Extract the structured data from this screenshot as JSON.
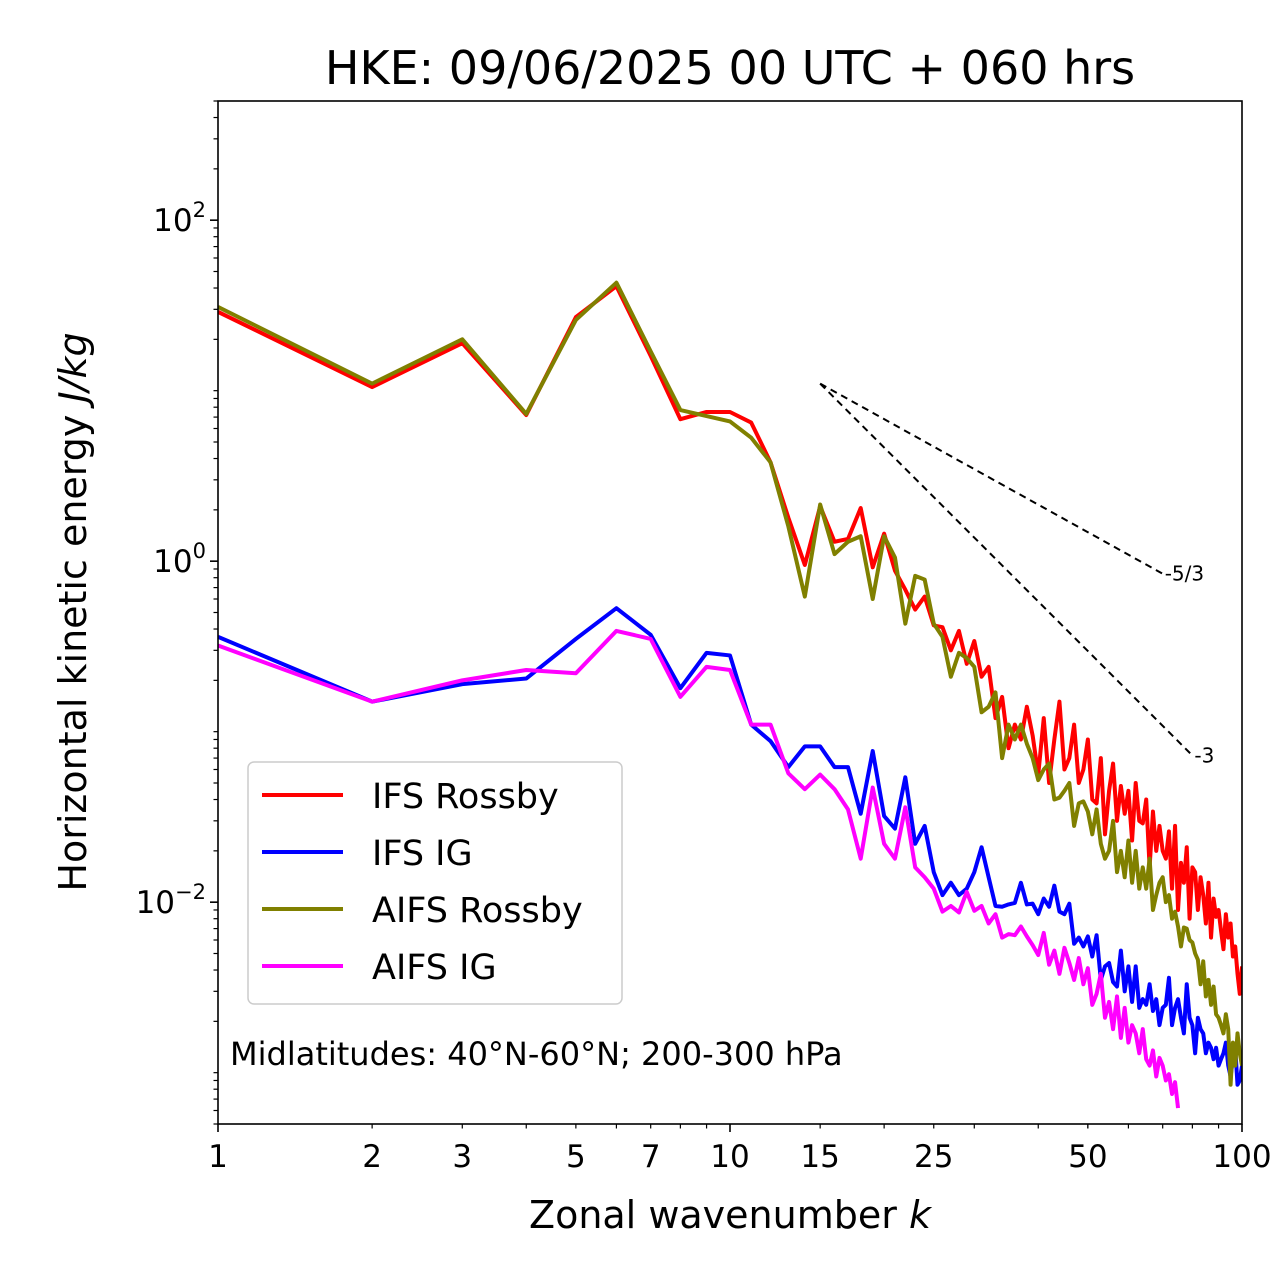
{
  "chart_data": {
    "type": "line",
    "title": "HKE: 09/06/2025 00 UTC + 060 hrs",
    "xlabel": "Zonal wavenumber",
    "xlabel_italic": "k",
    "ylabel": "Horizontal kinetic energy",
    "ylabel_italic": "J/kg",
    "xscale": "log",
    "yscale": "log",
    "xlim": [
      1,
      100
    ],
    "ylim": [
      0.0005,
      500
    ],
    "x_tick_values": [
      1,
      2,
      3,
      5,
      7,
      10,
      15,
      25,
      50,
      100
    ],
    "x_tick_labels": [
      "1",
      "2",
      "3",
      "5",
      "7",
      "10",
      "15",
      "25",
      "50",
      "100"
    ],
    "y_tick_values": [
      0.01,
      1,
      100
    ],
    "y_tick_labels": [
      {
        "base": "10",
        "exp": "−2"
      },
      {
        "base": "10",
        "exp": "0"
      },
      {
        "base": "10",
        "exp": "2"
      }
    ],
    "grid": false,
    "legend_placement": "lower-left",
    "annotation": "Midlatitudes: 40°N-60°N; 200-300 hPa",
    "reference_slopes": [
      {
        "label": "-5/3",
        "slope": -1.6667,
        "x_start": 15,
        "y_start": 11,
        "x_end": 70
      },
      {
        "label": "-3",
        "slope": -3,
        "x_start": 15,
        "y_start": 11,
        "x_end": 80
      }
    ],
    "series": [
      {
        "name": "IFS Rossby",
        "color": "#ff0000",
        "x": [
          1,
          2,
          3,
          4,
          5,
          6,
          7,
          8,
          9,
          10,
          11,
          12,
          13,
          14,
          15,
          16,
          17,
          18,
          19,
          20,
          21,
          22,
          23,
          24,
          25,
          26,
          27,
          28,
          29,
          30,
          31,
          32,
          33,
          34,
          35,
          36,
          37,
          38,
          39,
          40,
          41,
          42,
          43,
          44,
          45,
          46,
          47,
          48,
          49,
          50,
          51,
          52,
          53,
          54,
          55,
          56,
          57,
          58,
          59,
          60,
          61,
          62,
          63,
          64,
          65,
          66,
          67,
          68,
          69,
          70,
          71,
          72,
          73,
          74,
          75,
          76,
          77,
          78,
          79,
          80,
          81,
          82,
          83,
          84,
          85,
          86,
          87,
          88,
          89,
          90,
          91,
          92,
          93,
          94,
          95,
          96,
          97,
          98,
          99,
          100
        ],
        "y": [
          29,
          10.5,
          19,
          7.2,
          27,
          41,
          16,
          6.8,
          7.5,
          7.5,
          6.5,
          3.8,
          1.8,
          0.95,
          2.1,
          1.3,
          1.35,
          2.05,
          0.92,
          1.45,
          0.88,
          0.68,
          0.52,
          0.62,
          0.42,
          0.41,
          0.3,
          0.39,
          0.25,
          0.34,
          0.21,
          0.24,
          0.12,
          0.16,
          0.08,
          0.11,
          0.09,
          0.14,
          0.095,
          0.056,
          0.12,
          0.05,
          0.09,
          0.15,
          0.06,
          0.07,
          0.11,
          0.05,
          0.06,
          0.09,
          0.04,
          0.038,
          0.07,
          0.025,
          0.045,
          0.065,
          0.03,
          0.048,
          0.033,
          0.045,
          0.023,
          0.05,
          0.03,
          0.029,
          0.04,
          0.016,
          0.034,
          0.02,
          0.028,
          0.02,
          0.018,
          0.026,
          0.012,
          0.028,
          0.009,
          0.017,
          0.013,
          0.021,
          0.008,
          0.016,
          0.015,
          0.009,
          0.014,
          0.011,
          0.0075,
          0.013,
          0.0062,
          0.0105,
          0.0082,
          0.009,
          0.0068,
          0.0053,
          0.0085,
          0.0062,
          0.0075,
          0.0048,
          0.0055,
          0.0038,
          0.0029,
          0.0042
        ]
      },
      {
        "name": "IFS IG",
        "color": "#0000ff",
        "x": [
          1,
          2,
          3,
          4,
          5,
          6,
          7,
          8,
          9,
          10,
          11,
          12,
          13,
          14,
          15,
          16,
          17,
          18,
          19,
          20,
          21,
          22,
          23,
          24,
          25,
          26,
          27,
          28,
          29,
          30,
          31,
          32,
          33,
          34,
          35,
          36,
          37,
          38,
          39,
          40,
          41,
          42,
          43,
          44,
          45,
          46,
          47,
          48,
          49,
          50,
          51,
          52,
          53,
          54,
          55,
          56,
          57,
          58,
          59,
          60,
          61,
          62,
          63,
          64,
          65,
          66,
          67,
          68,
          69,
          70,
          71,
          72,
          73,
          74,
          75,
          76,
          77,
          78,
          79,
          80,
          81,
          82,
          83,
          84,
          85,
          86,
          87,
          88,
          89,
          90,
          91,
          92,
          93,
          94,
          95,
          96,
          97,
          98,
          99,
          100
        ],
        "y": [
          0.36,
          0.15,
          0.19,
          0.205,
          0.35,
          0.53,
          0.37,
          0.18,
          0.29,
          0.28,
          0.11,
          0.088,
          0.062,
          0.082,
          0.082,
          0.062,
          0.062,
          0.033,
          0.077,
          0.032,
          0.027,
          0.054,
          0.022,
          0.028,
          0.015,
          0.011,
          0.013,
          0.011,
          0.012,
          0.015,
          0.021,
          0.014,
          0.0095,
          0.0094,
          0.0097,
          0.0099,
          0.013,
          0.0097,
          0.0098,
          0.0085,
          0.0105,
          0.0094,
          0.0125,
          0.0088,
          0.0085,
          0.0098,
          0.0057,
          0.0062,
          0.0055,
          0.0063,
          0.0048,
          0.0064,
          0.0035,
          0.0042,
          0.0044,
          0.0034,
          0.0032,
          0.0052,
          0.003,
          0.0042,
          0.0026,
          0.0042,
          0.0024,
          0.0027,
          0.0025,
          0.0033,
          0.0023,
          0.0027,
          0.0019,
          0.0024,
          0.0025,
          0.0036,
          0.0019,
          0.0024,
          0.0027,
          0.0021,
          0.0017,
          0.0033,
          0.0021,
          0.0019,
          0.0013,
          0.0021,
          0.0018,
          0.0017,
          0.0013,
          0.0015,
          0.0014,
          0.0012,
          0.0014,
          0.0011,
          0.0012,
          0.0013,
          0.0015,
          0.0011,
          0.00095,
          0.0012,
          0.0014,
          0.00085,
          0.0009,
          0.0011
        ]
      },
      {
        "name": "AIFS Rossby",
        "color": "#808000",
        "x": [
          1,
          2,
          3,
          4,
          5,
          6,
          7,
          8,
          9,
          10,
          11,
          12,
          13,
          14,
          15,
          16,
          17,
          18,
          19,
          20,
          21,
          22,
          23,
          24,
          25,
          26,
          27,
          28,
          29,
          30,
          31,
          32,
          33,
          34,
          35,
          36,
          37,
          38,
          39,
          40,
          41,
          42,
          43,
          44,
          45,
          46,
          47,
          48,
          49,
          50,
          51,
          52,
          53,
          54,
          55,
          56,
          57,
          58,
          59,
          60,
          61,
          62,
          63,
          64,
          65,
          66,
          67,
          68,
          69,
          70,
          71,
          72,
          73,
          74,
          75,
          76,
          77,
          78,
          79,
          80,
          81,
          82,
          83,
          84,
          85,
          86,
          87,
          88,
          89,
          90,
          91,
          92,
          93,
          94,
          95,
          96,
          97,
          98,
          99,
          100
        ],
        "y": [
          31,
          11,
          20,
          7.3,
          26,
          43,
          17,
          7.7,
          7.1,
          6.6,
          5.3,
          3.8,
          1.6,
          0.62,
          2.15,
          1.1,
          1.3,
          1.4,
          0.6,
          1.4,
          1.05,
          0.43,
          0.82,
          0.78,
          0.43,
          0.36,
          0.21,
          0.29,
          0.27,
          0.24,
          0.13,
          0.14,
          0.17,
          0.07,
          0.11,
          0.09,
          0.11,
          0.085,
          0.07,
          0.052,
          0.06,
          0.065,
          0.04,
          0.041,
          0.045,
          0.05,
          0.028,
          0.038,
          0.039,
          0.034,
          0.025,
          0.035,
          0.022,
          0.018,
          0.02,
          0.03,
          0.015,
          0.02,
          0.014,
          0.023,
          0.013,
          0.02,
          0.012,
          0.016,
          0.012,
          0.018,
          0.009,
          0.011,
          0.013,
          0.014,
          0.01,
          0.011,
          0.008,
          0.0088,
          0.0072,
          0.0055,
          0.0071,
          0.007,
          0.006,
          0.0058,
          0.005,
          0.0046,
          0.0033,
          0.0045,
          0.0028,
          0.0035,
          0.0025,
          0.0032,
          0.0022,
          0.0021,
          0.0019,
          0.0017,
          0.0022,
          0.0018,
          0.00085,
          0.0015,
          0.0011,
          0.0017,
          0.0013,
          0.0011
        ]
      },
      {
        "name": "AIFS IG",
        "color": "#ff00ff",
        "x": [
          1,
          2,
          3,
          4,
          5,
          6,
          7,
          8,
          9,
          10,
          11,
          12,
          13,
          14,
          15,
          16,
          17,
          18,
          19,
          20,
          21,
          22,
          23,
          24,
          25,
          26,
          27,
          28,
          29,
          30,
          31,
          32,
          33,
          34,
          35,
          36,
          37,
          38,
          39,
          40,
          41,
          42,
          43,
          44,
          45,
          46,
          47,
          48,
          49,
          50,
          51,
          52,
          53,
          54,
          55,
          56,
          57,
          58,
          59,
          60,
          61,
          62,
          63,
          64,
          65,
          66,
          67,
          68,
          69,
          70,
          71,
          72,
          73,
          74,
          75
        ],
        "y": [
          0.32,
          0.15,
          0.2,
          0.23,
          0.22,
          0.39,
          0.35,
          0.16,
          0.24,
          0.23,
          0.11,
          0.11,
          0.057,
          0.046,
          0.056,
          0.046,
          0.035,
          0.018,
          0.047,
          0.022,
          0.018,
          0.036,
          0.016,
          0.014,
          0.012,
          0.0088,
          0.0095,
          0.0087,
          0.0115,
          0.0089,
          0.0095,
          0.0075,
          0.0085,
          0.0062,
          0.0065,
          0.0064,
          0.0072,
          0.0063,
          0.0056,
          0.0049,
          0.0066,
          0.0043,
          0.0052,
          0.0038,
          0.0054,
          0.0044,
          0.0035,
          0.0047,
          0.0033,
          0.0041,
          0.0025,
          0.0029,
          0.0038,
          0.0021,
          0.0026,
          0.0018,
          0.0028,
          0.0016,
          0.0024,
          0.0015,
          0.0019,
          0.0017,
          0.0013,
          0.0018,
          0.0012,
          0.0011,
          0.00135,
          0.00095,
          0.00122,
          0.0011,
          0.0009,
          0.00098,
          0.00075,
          0.00088,
          0.00062
        ]
      }
    ]
  }
}
